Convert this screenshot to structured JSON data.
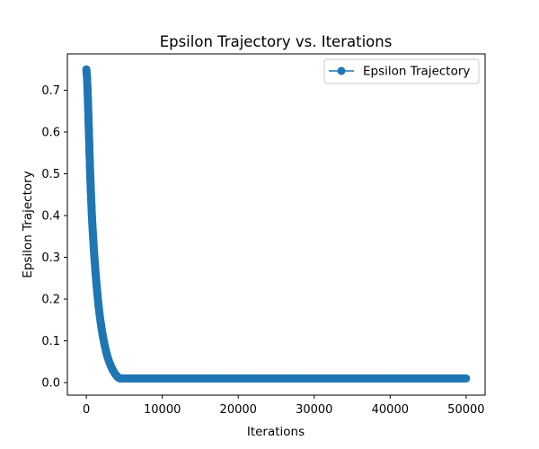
{
  "chart_data": {
    "type": "line",
    "title": "Epsilon Trajectory vs. Iterations",
    "xlabel": "Iterations",
    "ylabel": "Epsilon Trajectory",
    "xlim": [
      -2500,
      52500
    ],
    "ylim": [
      -0.03,
      0.787
    ],
    "x_ticks": [
      0,
      10000,
      20000,
      30000,
      40000,
      50000
    ],
    "x_tick_labels": [
      "0",
      "10000",
      "20000",
      "30000",
      "40000",
      "50000"
    ],
    "y_ticks": [
      0.0,
      0.1,
      0.2,
      0.3,
      0.4,
      0.5,
      0.6,
      0.7
    ],
    "y_tick_labels": [
      "0.0",
      "0.1",
      "0.2",
      "0.3",
      "0.4",
      "0.5",
      "0.6",
      "0.7"
    ],
    "grid": false,
    "legend": {
      "position": "top-right"
    },
    "series": [
      {
        "name": "Epsilon Trajectory",
        "color": "#1f77b4",
        "marker": "circle",
        "x": [
          0,
          100,
          200,
          300,
          400,
          500,
          600,
          700,
          800,
          1000,
          1200,
          1400,
          1600,
          1800,
          2000,
          2200,
          2400,
          2600,
          2800,
          3000,
          3200,
          3400,
          3600,
          3800,
          4000,
          4200,
          4400,
          4600,
          5000,
          7500,
          10000,
          12500,
          15000,
          17500,
          20000,
          22500,
          25000,
          27500,
          30000,
          32500,
          35000,
          37500,
          40000,
          42500,
          45000,
          47500,
          50000
        ],
        "y": [
          0.75,
          0.727,
          0.68,
          0.62,
          0.56,
          0.5,
          0.455,
          0.41,
          0.375,
          0.315,
          0.265,
          0.222,
          0.185,
          0.155,
          0.13,
          0.108,
          0.09,
          0.074,
          0.061,
          0.05,
          0.041,
          0.033,
          0.026,
          0.02,
          0.016,
          0.012,
          0.01,
          0.01,
          0.01,
          0.01,
          0.01,
          0.01,
          0.01,
          0.01,
          0.01,
          0.01,
          0.01,
          0.01,
          0.01,
          0.01,
          0.01,
          0.01,
          0.01,
          0.01,
          0.01,
          0.01,
          0.01
        ]
      }
    ]
  }
}
